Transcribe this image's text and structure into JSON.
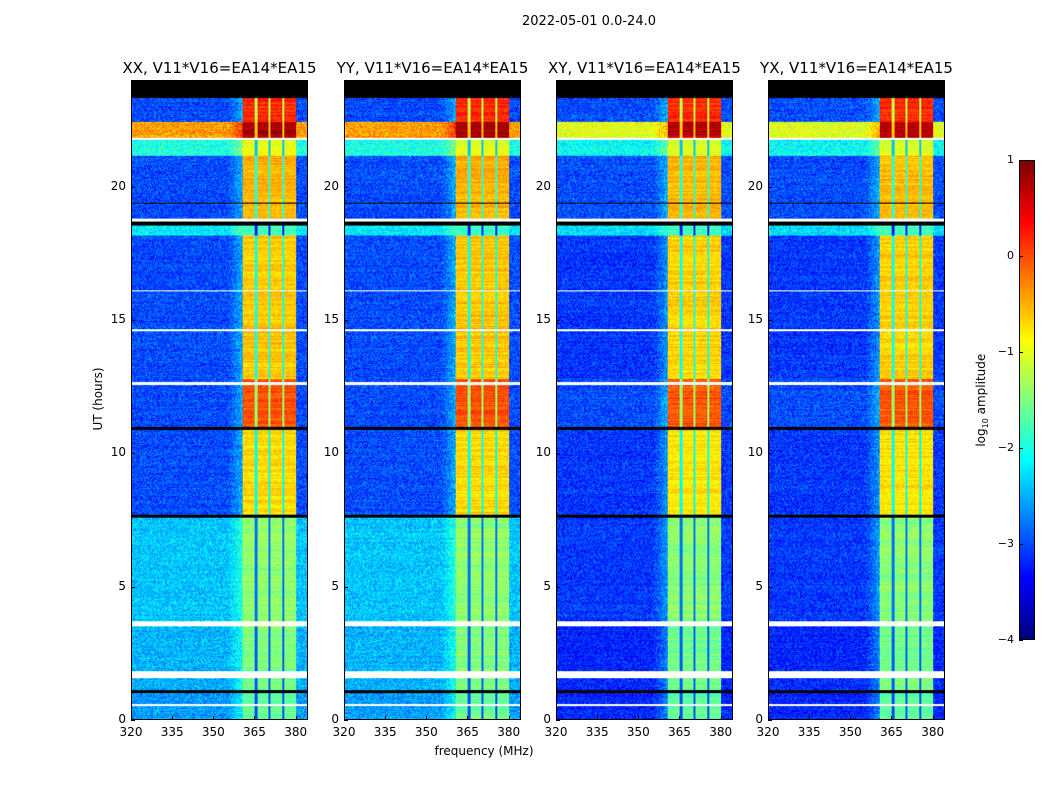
{
  "figure_title": "2022-05-01 0.0-24.0",
  "chart_data": {
    "type": "heatmap",
    "xlabel": "frequency (MHz)",
    "ylabel": "UT (hours)",
    "xlim": [
      320,
      384.5
    ],
    "ylim": [
      0,
      24
    ],
    "xticks": [
      320,
      335,
      350,
      365,
      380
    ],
    "yticks": [
      0,
      5,
      10,
      15,
      20
    ],
    "colorbar": {
      "label_prefix": "log",
      "label_sub": "10",
      "label_suffix": " amplitude",
      "range": [
        -4,
        1
      ],
      "ticks": [
        1,
        0,
        -1,
        -2,
        -3,
        -4
      ],
      "colormap": "jet"
    },
    "rfi_band_mhz": [
      360.7,
      380.4
    ],
    "band_dividers_mhz": [
      365.5,
      370.5,
      375.6
    ],
    "panels": [
      {
        "title": "XX, V11*V16=EA14*EA15",
        "pol": "parallel"
      },
      {
        "title": "YY, V11*V16=EA14*EA15",
        "pol": "parallel"
      },
      {
        "title": "XY, V11*V16=EA14*EA15",
        "pol": "cross"
      },
      {
        "title": "YX, V11*V16=EA14*EA15",
        "pol": "cross"
      }
    ],
    "segments": [
      {
        "t": [
          0.0,
          1.0
        ],
        "bg_parallel": -2.6,
        "bg_cross": -3.2,
        "band": -1.6
      },
      {
        "t": [
          1.0,
          3.5
        ],
        "bg_parallel": -2.5,
        "bg_cross": -3.2,
        "band": -1.5
      },
      {
        "t": [
          3.7,
          7.6
        ],
        "bg_parallel": -2.4,
        "bg_cross": -3.1,
        "band": -1.4
      },
      {
        "t": [
          7.7,
          10.9
        ],
        "bg_parallel": -3.0,
        "bg_cross": -3.1,
        "band": -0.7
      },
      {
        "t": [
          10.9,
          12.8
        ],
        "bg_parallel": -3.0,
        "bg_cross": -3.0,
        "band": 0.0
      },
      {
        "t": [
          12.8,
          18.2
        ],
        "bg_parallel": -3.0,
        "bg_cross": -3.1,
        "band": -0.6
      },
      {
        "t": [
          18.2,
          18.6
        ],
        "bg_parallel": -2.2,
        "bg_cross": -2.3,
        "band": -1.8
      },
      {
        "t": [
          18.8,
          21.2
        ],
        "bg_parallel": -3.0,
        "bg_cross": -3.0,
        "band": -0.5
      },
      {
        "t": [
          21.2,
          21.8
        ],
        "bg_parallel": -2.0,
        "bg_cross": -2.1,
        "band": -1.0
      },
      {
        "t": [
          21.9,
          22.5
        ],
        "bg_parallel": -0.4,
        "bg_cross": -1.0,
        "band": 0.8
      },
      {
        "t": [
          22.5,
          23.4
        ],
        "bg_parallel": -3.0,
        "bg_cross": -3.0,
        "band": 0.2
      }
    ],
    "flagged_white": [
      [
        0.5,
        0.6
      ],
      [
        1.55,
        1.8
      ],
      [
        3.5,
        3.7
      ],
      [
        12.6,
        12.7
      ],
      [
        14.6,
        14.7
      ],
      [
        16.1,
        16.15
      ],
      [
        18.75,
        18.85
      ],
      [
        21.8,
        21.9
      ]
    ],
    "flagged_black": [
      [
        1.0,
        1.1
      ],
      [
        7.6,
        7.7
      ],
      [
        10.9,
        11.0
      ],
      [
        18.6,
        18.75
      ],
      [
        19.4,
        19.45
      ],
      [
        23.4,
        24.0
      ]
    ]
  }
}
